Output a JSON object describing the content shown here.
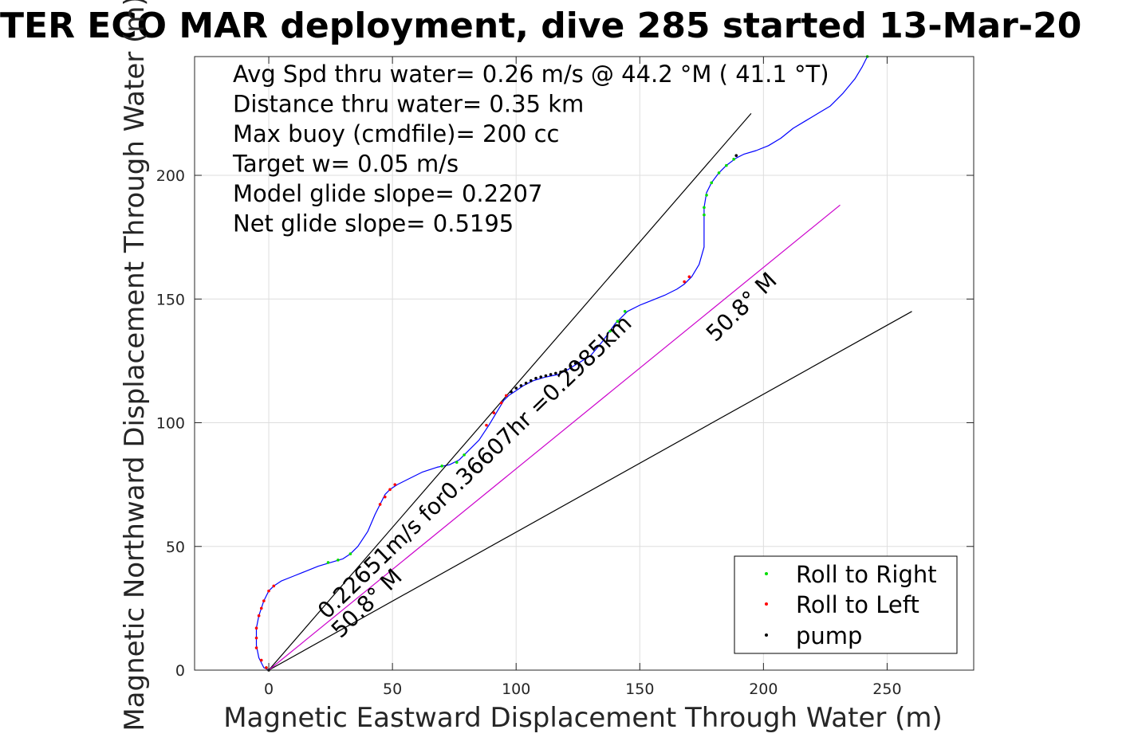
{
  "chart_data": {
    "type": "line",
    "title": "TER ECO MAR deployment, dive 285 started 13-Mar-20",
    "xlabel": "Magnetic Eastward Displacement Through Water (m)",
    "ylabel": "Magnetic Northward Displacement Through Water (m)",
    "xlim": [
      -30,
      285
    ],
    "ylim": [
      0,
      248
    ],
    "xticks": [
      0,
      50,
      100,
      150,
      200,
      250
    ],
    "yticks": [
      0,
      50,
      100,
      150,
      200
    ],
    "grid": true,
    "legend_position": "bottom-right",
    "annotations": [
      "Avg Spd thru water=  0.26 m/s @  44.2 °M ( 41.1 °T)",
      "Distance thru water=  0.35 km",
      "Max buoy (cmdfile)= 200 cc",
      "Target w= 0.05 m/s",
      "Model glide slope= 0.2207",
      "Net glide slope= 0.5195"
    ],
    "rotated_labels": [
      "0.22651m/s for0.36607hr =0.2985km",
      "50.8° M",
      "50.8° M"
    ],
    "series": [
      {
        "name": "",
        "color": "#0000ff",
        "points": [
          [
            0,
            0
          ],
          [
            -2,
            1
          ],
          [
            -4,
            5
          ],
          [
            -5,
            10
          ],
          [
            -5,
            17
          ],
          [
            -4,
            22
          ],
          [
            -3,
            25
          ],
          [
            -2,
            28
          ],
          [
            0,
            32
          ],
          [
            2,
            34
          ],
          [
            5,
            36
          ],
          [
            10,
            38
          ],
          [
            15,
            40
          ],
          [
            20,
            42
          ],
          [
            25,
            43.5
          ],
          [
            30,
            45
          ],
          [
            33,
            47
          ],
          [
            36,
            50
          ],
          [
            40,
            56
          ],
          [
            43,
            63
          ],
          [
            45,
            67
          ],
          [
            47,
            71
          ],
          [
            49,
            73
          ],
          [
            52,
            75
          ],
          [
            56,
            77
          ],
          [
            62,
            80
          ],
          [
            68,
            82
          ],
          [
            73,
            83
          ],
          [
            77,
            85
          ],
          [
            80,
            88
          ],
          [
            85,
            93
          ],
          [
            89,
            99
          ],
          [
            92,
            104
          ],
          [
            95,
            109
          ],
          [
            97,
            111
          ],
          [
            100,
            113
          ],
          [
            103,
            115
          ],
          [
            107,
            117
          ],
          [
            112,
            118.5
          ],
          [
            117,
            119.5
          ],
          [
            121,
            121.5
          ],
          [
            125,
            124
          ],
          [
            130,
            127
          ],
          [
            135,
            133
          ],
          [
            140,
            140
          ],
          [
            145,
            145
          ],
          [
            150,
            147.5
          ],
          [
            155,
            149.5
          ],
          [
            160,
            151.5
          ],
          [
            165,
            154
          ],
          [
            168,
            156
          ],
          [
            171,
            159
          ],
          [
            174,
            164
          ],
          [
            176,
            171
          ],
          [
            176,
            180
          ],
          [
            176,
            187
          ],
          [
            177,
            193
          ],
          [
            179,
            197
          ],
          [
            182,
            201
          ],
          [
            185,
            204
          ],
          [
            189,
            207
          ],
          [
            192,
            208.5
          ],
          [
            197,
            210
          ],
          [
            202,
            212
          ],
          [
            207,
            215
          ],
          [
            212,
            219
          ],
          [
            217,
            222
          ],
          [
            222,
            225
          ],
          [
            227,
            228
          ],
          [
            232,
            233
          ],
          [
            237,
            239
          ],
          [
            240,
            244
          ],
          [
            242,
            248
          ]
        ]
      },
      {
        "name": "",
        "color": "#000000",
        "points": [
          [
            0,
            0
          ],
          [
            195,
            225
          ]
        ]
      },
      {
        "name": "",
        "color": "#000000",
        "points": [
          [
            0,
            0
          ],
          [
            260,
            145
          ]
        ]
      },
      {
        "name": "",
        "color": "#cc00cc",
        "points": [
          [
            0,
            0
          ],
          [
            231,
            188
          ]
        ]
      }
    ],
    "markers": {
      "roll_right": {
        "name": "Roll to Right",
        "color": "#00dd00",
        "points": [
          [
            -1,
            1
          ],
          [
            24,
            43.5
          ],
          [
            28,
            44.5
          ],
          [
            33,
            47
          ],
          [
            70,
            82.5
          ],
          [
            76,
            84
          ],
          [
            79,
            87
          ],
          [
            138,
            137
          ],
          [
            141,
            141
          ],
          [
            144,
            145
          ],
          [
            176,
            184
          ],
          [
            176,
            187
          ],
          [
            177,
            192
          ],
          [
            179,
            197
          ],
          [
            182,
            201
          ],
          [
            185,
            204
          ],
          [
            188,
            206.5
          ],
          [
            242,
            248
          ]
        ]
      },
      "roll_left": {
        "name": "Roll to Left",
        "color": "#ff0000",
        "points": [
          [
            -1,
            1
          ],
          [
            -3,
            4
          ],
          [
            -5,
            9
          ],
          [
            -5,
            13
          ],
          [
            -5,
            17
          ],
          [
            -4,
            22
          ],
          [
            -3,
            25
          ],
          [
            -2,
            28
          ],
          [
            0,
            32
          ],
          [
            2,
            34
          ],
          [
            45,
            67
          ],
          [
            47,
            70
          ],
          [
            49,
            73
          ],
          [
            51,
            75
          ],
          [
            88,
            99
          ],
          [
            91,
            104
          ],
          [
            94,
            108
          ],
          [
            96,
            111
          ],
          [
            168,
            157
          ],
          [
            170,
            159
          ]
        ]
      },
      "pump": {
        "name": "pump",
        "color": "#000000",
        "points": [
          [
            0,
            0
          ],
          [
            98,
            112.5
          ],
          [
            100,
            114
          ],
          [
            102,
            115
          ],
          [
            104,
            116
          ],
          [
            106,
            117
          ],
          [
            108,
            118
          ],
          [
            110,
            118.5
          ],
          [
            112,
            119
          ],
          [
            114,
            119.5
          ],
          [
            116,
            120
          ],
          [
            118,
            120.5
          ],
          [
            120,
            121.5
          ],
          [
            122,
            123
          ],
          [
            124,
            124
          ],
          [
            189,
            208
          ]
        ]
      }
    }
  }
}
